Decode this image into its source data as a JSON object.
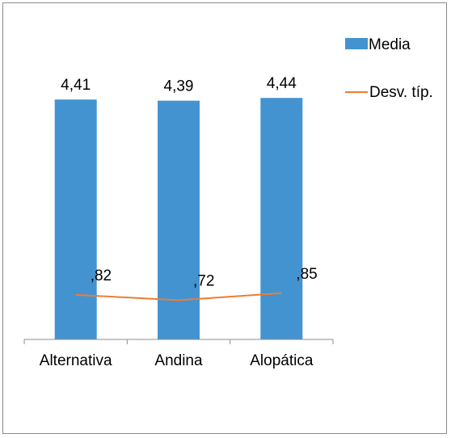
{
  "chart_data": {
    "type": "bar",
    "categories": [
      "Alternativa",
      "Andina",
      "Alopática"
    ],
    "series": [
      {
        "name": "Media",
        "kind": "bar",
        "color": "#4493D1",
        "values": [
          4.41,
          4.39,
          4.44
        ],
        "labels": [
          "4,41",
          "4,39",
          "4,44"
        ]
      },
      {
        "name": "Desv. típ.",
        "kind": "line",
        "color": "#ED7D31",
        "values": [
          0.82,
          0.72,
          0.85
        ],
        "labels": [
          ",82",
          ",72",
          ",85"
        ]
      }
    ],
    "ylim": [
      0,
      5
    ],
    "grid": false,
    "legend": "right"
  }
}
